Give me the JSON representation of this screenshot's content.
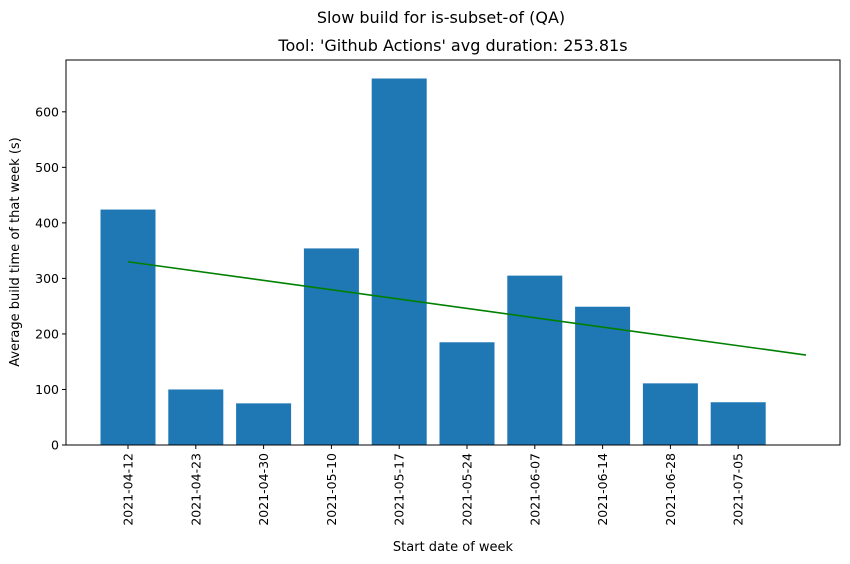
{
  "chart_data": {
    "type": "bar",
    "suptitle": "Slow build for is-subset-of (QA)",
    "title": "Tool: 'Github Actions' avg duration: 253.81s",
    "xlabel": "Start date of week",
    "ylabel": "Average build time of that week (s)",
    "categories": [
      "2021-04-12",
      "2021-04-23",
      "2021-04-30",
      "2021-05-10",
      "2021-05-17",
      "2021-05-24",
      "2021-06-07",
      "2021-06-14",
      "2021-06-28",
      "2021-07-05"
    ],
    "values": [
      424,
      100,
      75,
      354,
      660,
      185,
      305,
      249,
      111,
      77
    ],
    "bar_color": "#1f77b4",
    "trend_line": {
      "color": "#008000",
      "start_value": 330,
      "end_value": 162,
      "x_start_index": 0,
      "x_end_index": 10
    },
    "ylim": [
      0,
      690
    ],
    "yticks": [
      0,
      100,
      200,
      300,
      400,
      500,
      600
    ],
    "grid": false
  }
}
